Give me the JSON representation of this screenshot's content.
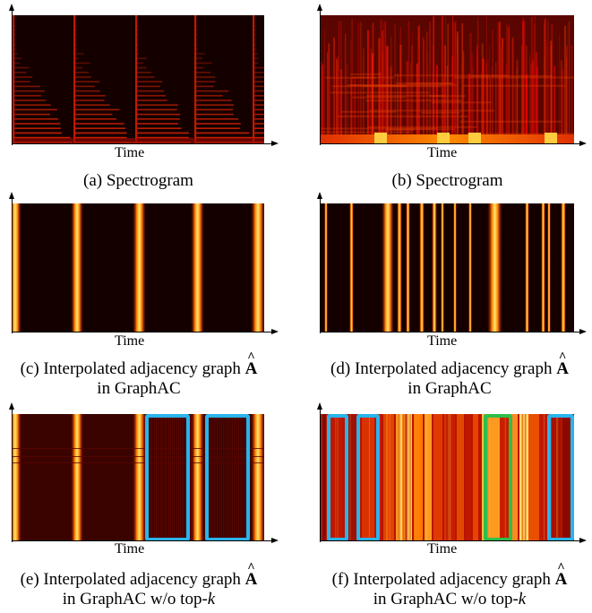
{
  "axis_label": "Time",
  "panels": [
    {
      "id": "a",
      "caption": "(a) Spectrogram"
    },
    {
      "id": "b",
      "caption": "(b) Spectrogram"
    },
    {
      "id": "c",
      "caption_line1_prefix": "(c) Interpolated adjacency graph",
      "symbol": "A",
      "caption_line2": "in GraphAC"
    },
    {
      "id": "d",
      "caption_line1_prefix": "(d) Interpolated adjacency graph",
      "symbol": "A",
      "caption_line2": "in GraphAC"
    },
    {
      "id": "e",
      "caption_line1_prefix": "(e) Interpolated adjacency graph",
      "symbol": "A",
      "caption_line2_prefix": "in GraphAC w/o top-",
      "caption_line2_var": "k"
    },
    {
      "id": "f",
      "caption_line1_prefix": "(f) Interpolated adjacency graph",
      "symbol": "A",
      "caption_line2_prefix": "in GraphAC w/o top-",
      "caption_line2_var": "k"
    }
  ],
  "colors": {
    "background_dark": "#150000",
    "highlight_blue": "#29b4ec",
    "highlight_green": "#2fbe4a"
  }
}
